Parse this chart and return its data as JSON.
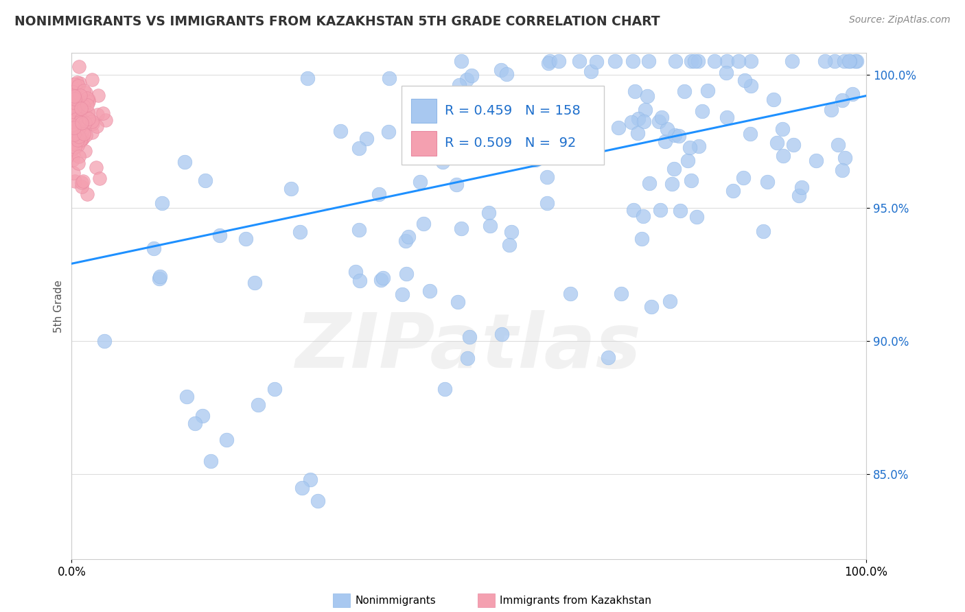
{
  "title": "NONIMMIGRANTS VS IMMIGRANTS FROM KAZAKHSTAN 5TH GRADE CORRELATION CHART",
  "source": "Source: ZipAtlas.com",
  "ylabel": "5th Grade",
  "xlabel": "",
  "watermark": "ZIPatlas",
  "xlim": [
    0.0,
    1.0
  ],
  "ylim": [
    0.818,
    1.008
  ],
  "yticks": [
    0.85,
    0.9,
    0.95,
    1.0
  ],
  "ytick_labels": [
    "85.0%",
    "90.0%",
    "95.0%",
    "100.0%"
  ],
  "xticks": [
    0.0,
    1.0
  ],
  "xtick_labels": [
    "0.0%",
    "100.0%"
  ],
  "legend_blue_R": "0.459",
  "legend_blue_N": "158",
  "legend_pink_R": "0.509",
  "legend_pink_N": "92",
  "nonimmigrant_color": "#a8c8f0",
  "immigrant_color": "#f4a0b0",
  "trendline_color": "#1e90ff",
  "background_color": "#ffffff",
  "grid_color": "#dddddd",
  "title_color": "#333333",
  "legend_text_color": "#1e6fcc",
  "axis_label_color": "#555555",
  "trendline_start_y": 0.929,
  "trendline_end_y": 0.992
}
